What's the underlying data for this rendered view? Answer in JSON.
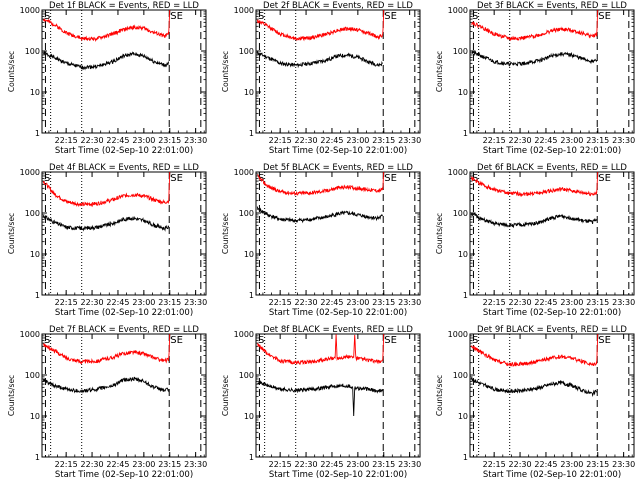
{
  "figure": {
    "xlabel_prefix": "Start Time (",
    "xlabel_date": "02-Sep-10 22:01:00",
    "xlabel_suffix": ")",
    "ylabel": "Counts/sec",
    "flag_start": "S",
    "flag_end": "SE",
    "colors": {
      "events": "#000000",
      "lld": "#ff0000",
      "axes": "#000000"
    }
  },
  "chart_data": [
    {
      "type": "line",
      "title": "Det 1f BLACK = Events, RED = LLD",
      "yscale": "log",
      "ylim": [
        1,
        1000
      ],
      "yticks": [
        "1",
        "10",
        "100",
        "1000"
      ],
      "xticks": [
        "22:15",
        "22:30",
        "22:45",
        "23:00",
        "23:15",
        "23:30"
      ],
      "series": [
        {
          "name": "Events",
          "color": "#000000",
          "x_hours": [
            22.03,
            22.13,
            22.25,
            22.4,
            22.55,
            22.7,
            22.8,
            22.9,
            23.0,
            23.1,
            23.2,
            23.24
          ],
          "y": [
            90,
            70,
            50,
            40,
            42,
            55,
            75,
            85,
            75,
            55,
            45,
            50
          ]
        },
        {
          "name": "LLD",
          "color": "#ff0000",
          "x_hours": [
            22.03,
            22.13,
            22.25,
            22.4,
            22.55,
            22.7,
            22.8,
            22.9,
            23.0,
            23.1,
            23.2,
            23.24,
            23.25
          ],
          "y": [
            600,
            450,
            280,
            200,
            200,
            260,
            330,
            380,
            360,
            280,
            230,
            260,
            1000
          ]
        }
      ]
    },
    {
      "type": "line",
      "title": "Det 2f BLACK = Events, RED = LLD",
      "yscale": "log",
      "ylim": [
        1,
        1000
      ],
      "yticks": [
        "1",
        "10",
        "100",
        "1000"
      ],
      "xticks": [
        "22:15",
        "22:30",
        "22:45",
        "23:00",
        "23:15",
        "23:30"
      ],
      "series": [
        {
          "name": "Events",
          "color": "#000000",
          "x_hours": [
            22.03,
            22.13,
            22.25,
            22.4,
            22.55,
            22.7,
            22.8,
            22.9,
            23.0,
            23.1,
            23.2,
            23.24
          ],
          "y": [
            90,
            70,
            50,
            45,
            50,
            60,
            75,
            80,
            70,
            55,
            45,
            50
          ]
        },
        {
          "name": "LLD",
          "color": "#ff0000",
          "x_hours": [
            22.03,
            22.13,
            22.25,
            22.4,
            22.55,
            22.7,
            22.8,
            22.9,
            23.0,
            23.1,
            23.2,
            23.24,
            23.25
          ],
          "y": [
            550,
            400,
            260,
            200,
            210,
            260,
            320,
            350,
            330,
            270,
            220,
            240,
            1000
          ]
        }
      ]
    },
    {
      "type": "line",
      "title": "Det 3f BLACK = Events, RED = LLD",
      "yscale": "log",
      "ylim": [
        1,
        1000
      ],
      "yticks": [
        "1",
        "10",
        "100",
        "1000"
      ],
      "xticks": [
        "22:15",
        "22:30",
        "22:45",
        "23:00",
        "23:15",
        "23:30"
      ],
      "series": [
        {
          "name": "Events",
          "color": "#000000",
          "x_hours": [
            22.03,
            22.13,
            22.25,
            22.4,
            22.55,
            22.7,
            22.8,
            22.9,
            23.0,
            23.1,
            23.2,
            23.24
          ],
          "y": [
            95,
            75,
            55,
            48,
            50,
            60,
            75,
            85,
            80,
            65,
            55,
            60
          ]
        },
        {
          "name": "LLD",
          "color": "#ff0000",
          "x_hours": [
            22.03,
            22.13,
            22.25,
            22.4,
            22.55,
            22.7,
            22.8,
            22.9,
            23.0,
            23.1,
            23.2,
            23.24,
            23.25
          ],
          "y": [
            500,
            380,
            260,
            200,
            210,
            250,
            310,
            340,
            320,
            270,
            230,
            250,
            1000
          ]
        }
      ]
    },
    {
      "type": "line",
      "title": "Det 4f BLACK = Events, RED = LLD",
      "yscale": "log",
      "ylim": [
        1,
        1000
      ],
      "yticks": [
        "1",
        "10",
        "100",
        "1000"
      ],
      "xticks": [
        "22:15",
        "22:30",
        "22:45",
        "23:00",
        "23:15",
        "23:30"
      ],
      "series": [
        {
          "name": "Events",
          "color": "#000000",
          "x_hours": [
            22.03,
            22.13,
            22.25,
            22.4,
            22.55,
            22.7,
            22.8,
            22.9,
            23.0,
            23.1,
            23.2,
            23.24
          ],
          "y": [
            85,
            60,
            45,
            42,
            45,
            55,
            70,
            75,
            65,
            50,
            42,
            45
          ]
        },
        {
          "name": "LLD",
          "color": "#ff0000",
          "x_hours": [
            22.03,
            22.13,
            22.25,
            22.4,
            22.55,
            22.7,
            22.8,
            22.9,
            23.0,
            23.1,
            23.2,
            23.24,
            23.25
          ],
          "y": [
            600,
            300,
            190,
            160,
            170,
            210,
            260,
            280,
            260,
            210,
            180,
            200,
            1000
          ]
        }
      ]
    },
    {
      "type": "line",
      "title": "Det 5f BLACK = Events, RED = LLD",
      "yscale": "log",
      "ylim": [
        1,
        1000
      ],
      "yticks": [
        "1",
        "10",
        "100",
        "1000"
      ],
      "xticks": [
        "22:15",
        "22:30",
        "22:45",
        "23:00",
        "23:15",
        "23:30"
      ],
      "series": [
        {
          "name": "Events",
          "color": "#000000",
          "x_hours": [
            22.03,
            22.13,
            22.25,
            22.4,
            22.55,
            22.7,
            22.8,
            22.9,
            23.0,
            23.1,
            23.2,
            23.24
          ],
          "y": [
            130,
            90,
            70,
            65,
            70,
            80,
            95,
            100,
            90,
            80,
            75,
            85
          ]
        },
        {
          "name": "LLD",
          "color": "#ff0000",
          "x_hours": [
            22.03,
            22.13,
            22.25,
            22.4,
            22.55,
            22.7,
            22.8,
            22.9,
            23.0,
            23.1,
            23.2,
            23.24,
            23.25
          ],
          "y": [
            800,
            450,
            330,
            300,
            310,
            350,
            410,
            430,
            400,
            370,
            350,
            380,
            1000
          ]
        }
      ]
    },
    {
      "type": "line",
      "title": "Det 6f BLACK = Events, RED = LLD",
      "yscale": "log",
      "ylim": [
        1,
        1000
      ],
      "yticks": [
        "1",
        "10",
        "100",
        "1000"
      ],
      "xticks": [
        "22:15",
        "22:30",
        "22:45",
        "23:00",
        "23:15",
        "23:30"
      ],
      "series": [
        {
          "name": "Events",
          "color": "#000000",
          "x_hours": [
            22.03,
            22.13,
            22.25,
            22.4,
            22.55,
            22.7,
            22.8,
            22.9,
            23.0,
            23.1,
            23.2,
            23.24
          ],
          "y": [
            100,
            70,
            55,
            50,
            52,
            60,
            75,
            85,
            75,
            65,
            60,
            70
          ]
        },
        {
          "name": "LLD",
          "color": "#ff0000",
          "x_hours": [
            22.03,
            22.13,
            22.25,
            22.4,
            22.55,
            22.7,
            22.8,
            22.9,
            23.0,
            23.1,
            23.2,
            23.24,
            23.25
          ],
          "y": [
            700,
            500,
            370,
            300,
            290,
            310,
            350,
            380,
            350,
            310,
            290,
            300,
            1000
          ]
        }
      ]
    },
    {
      "type": "line",
      "title": "Det 7f BLACK = Events, RED = LLD",
      "yscale": "log",
      "ylim": [
        1,
        1000
      ],
      "yticks": [
        "1",
        "10",
        "100",
        "1000"
      ],
      "xticks": [
        "22:15",
        "22:30",
        "22:45",
        "23:00",
        "23:15",
        "23:30"
      ],
      "series": [
        {
          "name": "Events",
          "color": "#000000",
          "x_hours": [
            22.03,
            22.13,
            22.25,
            22.4,
            22.55,
            22.7,
            22.8,
            22.9,
            23.0,
            23.1,
            23.2,
            23.24
          ],
          "y": [
            75,
            55,
            45,
            40,
            45,
            55,
            75,
            80,
            70,
            50,
            42,
            45
          ]
        },
        {
          "name": "LLD",
          "color": "#ff0000",
          "x_hours": [
            22.03,
            22.13,
            22.25,
            22.4,
            22.55,
            22.7,
            22.8,
            22.9,
            23.0,
            23.1,
            23.2,
            23.24,
            23.25
          ],
          "y": [
            550,
            400,
            260,
            210,
            220,
            270,
            330,
            360,
            330,
            260,
            220,
            240,
            1000
          ]
        }
      ]
    },
    {
      "type": "line",
      "title": "Det 8f BLACK = Events, RED = LLD",
      "yscale": "log",
      "ylim": [
        1,
        1000
      ],
      "yticks": [
        "1",
        "10",
        "100",
        "1000"
      ],
      "xticks": [
        "22:15",
        "22:30",
        "22:45",
        "23:00",
        "23:15",
        "23:30"
      ],
      "series": [
        {
          "name": "Events",
          "color": "#000000",
          "x_hours": [
            22.03,
            22.13,
            22.25,
            22.4,
            22.55,
            22.7,
            22.8,
            22.9,
            22.95,
            22.96,
            22.97,
            23.0,
            23.1,
            23.2,
            23.24
          ],
          "y": [
            70,
            55,
            45,
            42,
            45,
            50,
            55,
            55,
            50,
            10,
            50,
            48,
            45,
            40,
            45
          ]
        },
        {
          "name": "LLD",
          "color": "#ff0000",
          "x_hours": [
            22.03,
            22.13,
            22.25,
            22.4,
            22.55,
            22.7,
            22.78,
            22.79,
            22.8,
            22.9,
            22.96,
            22.97,
            22.98,
            23.1,
            23.2,
            23.24,
            23.25
          ],
          "y": [
            550,
            330,
            220,
            200,
            210,
            240,
            260,
            1000,
            260,
            280,
            270,
            1000,
            260,
            230,
            210,
            230,
            1000
          ]
        }
      ]
    },
    {
      "type": "line",
      "title": "Det 9f BLACK = Events, RED = LLD",
      "yscale": "log",
      "ylim": [
        1,
        1000
      ],
      "yticks": [
        "1",
        "10",
        "100",
        "1000"
      ],
      "xticks": [
        "22:15",
        "22:30",
        "22:45",
        "23:00",
        "23:15",
        "23:30"
      ],
      "series": [
        {
          "name": "Events",
          "color": "#000000",
          "x_hours": [
            22.03,
            22.13,
            22.25,
            22.4,
            22.55,
            22.7,
            22.8,
            22.9,
            23.0,
            23.1,
            23.2,
            23.24
          ],
          "y": [
            80,
            60,
            45,
            40,
            42,
            50,
            60,
            65,
            55,
            42,
            35,
            40
          ]
        },
        {
          "name": "LLD",
          "color": "#ff0000",
          "x_hours": [
            22.03,
            22.13,
            22.25,
            22.4,
            22.55,
            22.7,
            22.8,
            22.9,
            23.0,
            23.1,
            23.2,
            23.24,
            23.25
          ],
          "y": [
            500,
            350,
            230,
            180,
            190,
            220,
            260,
            280,
            260,
            210,
            180,
            200,
            1000
          ]
        }
      ]
    }
  ]
}
